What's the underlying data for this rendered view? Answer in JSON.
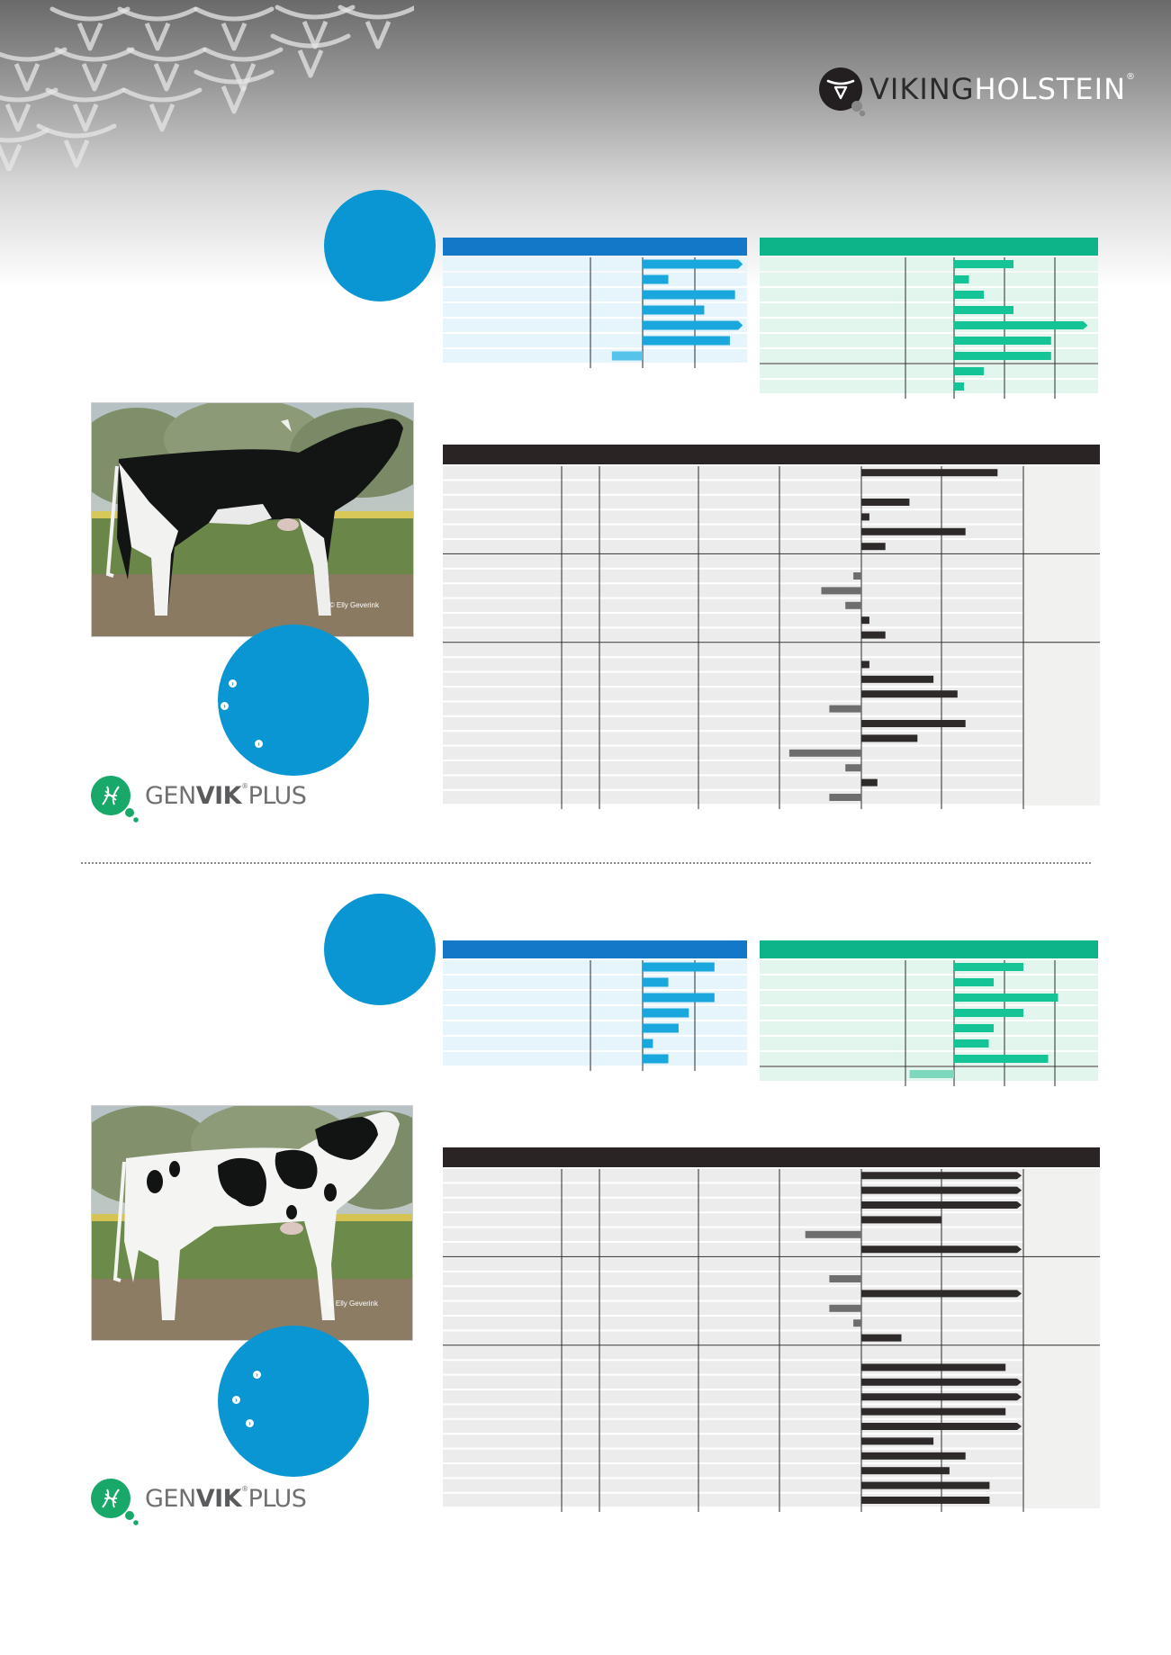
{
  "brand": {
    "name_part1": "VIKING",
    "name_part2": "HOLSTEIN",
    "registered": "®"
  },
  "colors": {
    "blue_chart_header": "#1478c8",
    "blue_bar": "#1aa7dd",
    "green_chart_header": "#0db48a",
    "green_bar": "#14c497",
    "dark_chart_header": "#2a2424",
    "dark_bar": "#2f2a2a",
    "gray_bar": "#6e6e6e",
    "badge_blue": "#0a96d2"
  },
  "genvik_logo": {
    "part1": "GEN",
    "part2": "VIK",
    "registered": "®",
    "part3": "PLUS"
  },
  "bulls": [
    {
      "photo_credit": "© Elly Geverink",
      "coat": "dark",
      "blue_chart": {
        "type": "bar",
        "values": [
          1.95,
          0.5,
          1.8,
          1.2,
          1.95,
          1.7,
          -0.6
        ]
      },
      "green_chart": {
        "type": "bar",
        "values": [
          0.6,
          0.15,
          0.3,
          0.6,
          1.35,
          0.98,
          0.98,
          0.3,
          0.1
        ]
      },
      "dark_chart": {
        "type": "bar",
        "values": [
          1.7,
          null,
          0.6,
          0.1,
          1.3,
          0.3,
          null,
          -0.1,
          -0.5,
          -0.2,
          0.1,
          0.3,
          null,
          0.1,
          0.9,
          1.2,
          -0.4,
          1.3,
          0.7,
          -0.9,
          -0.2,
          0.2,
          -0.4
        ]
      }
    },
    {
      "photo_credit": "© Elly Geverink",
      "coat": "white",
      "blue_chart": {
        "type": "bar",
        "values": [
          1.4,
          0.5,
          1.4,
          0.9,
          0.7,
          0.2,
          0.5
        ]
      },
      "green_chart": {
        "type": "bar",
        "values": [
          0.7,
          0.4,
          1.05,
          0.7,
          0.4,
          0.35,
          0.95,
          -0.45
        ]
      },
      "dark_chart": {
        "type": "bar",
        "values": [
          2.0,
          2.0,
          2.0,
          1.0,
          -0.7,
          2.0,
          null,
          -0.4,
          2.0,
          -0.4,
          -0.1,
          0.5,
          null,
          1.8,
          2.0,
          2.0,
          1.8,
          2.0,
          0.9,
          1.3,
          1.1,
          1.6,
          1.6
        ]
      }
    }
  ]
}
